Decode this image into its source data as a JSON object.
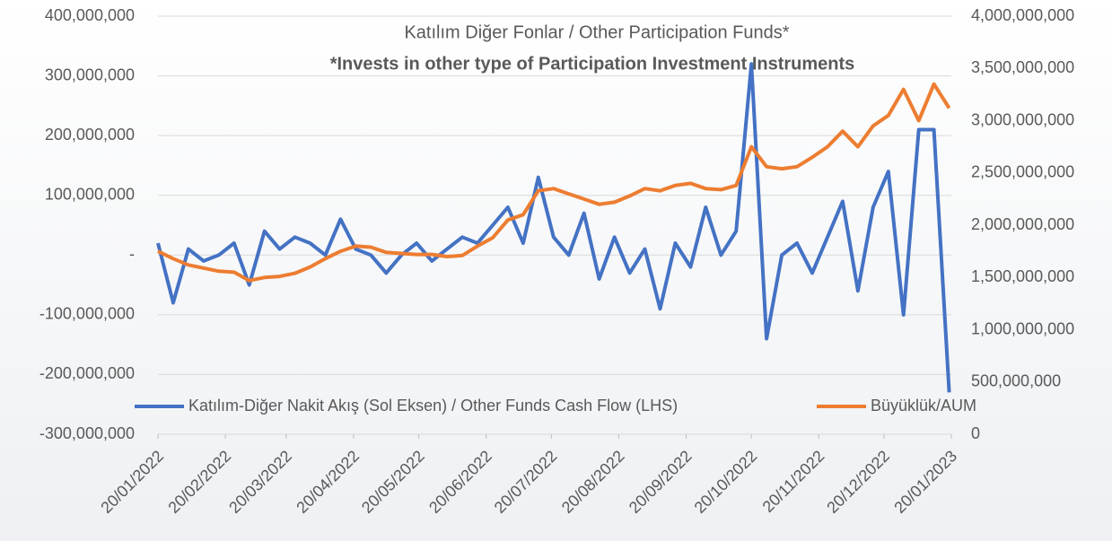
{
  "chart_data": {
    "type": "line",
    "title": "Katılım Diğer Fonlar / Other Participation Funds*",
    "subtitle": "*Invests in other type of Participation Investment Instruments",
    "x": [
      "20/01/2022",
      "27/01/2022",
      "03/02/2022",
      "10/02/2022",
      "17/02/2022",
      "24/02/2022",
      "03/03/2022",
      "10/03/2022",
      "17/03/2022",
      "24/03/2022",
      "31/03/2022",
      "07/04/2022",
      "14/04/2022",
      "21/04/2022",
      "28/04/2022",
      "05/05/2022",
      "12/05/2022",
      "19/05/2022",
      "26/05/2022",
      "02/06/2022",
      "09/06/2022",
      "16/06/2022",
      "23/06/2022",
      "30/06/2022",
      "07/07/2022",
      "14/07/2022",
      "21/07/2022",
      "28/07/2022",
      "04/08/2022",
      "11/08/2022",
      "18/08/2022",
      "25/08/2022",
      "01/09/2022",
      "08/09/2022",
      "15/09/2022",
      "22/09/2022",
      "29/09/2022",
      "06/10/2022",
      "13/10/2022",
      "20/10/2022",
      "27/10/2022",
      "03/11/2022",
      "10/11/2022",
      "17/11/2022",
      "24/11/2022",
      "01/12/2022",
      "08/12/2022",
      "15/12/2022",
      "22/12/2022",
      "29/12/2022",
      "05/01/2023",
      "12/01/2023",
      "19/01/2023"
    ],
    "series": [
      {
        "name": "Katılım-Diğer Nakit Akış (Sol Eksen) / Other Funds Cash Flow (LHS)",
        "color": "#4472c4",
        "values": [
          20000000,
          -80000000,
          10000000,
          -10000000,
          0,
          20000000,
          -50000000,
          40000000,
          10000000,
          30000000,
          20000000,
          0,
          60000000,
          10000000,
          0,
          -30000000,
          0,
          20000000,
          -10000000,
          10000000,
          30000000,
          20000000,
          50000000,
          80000000,
          20000000,
          130000000,
          30000000,
          0,
          70000000,
          -40000000,
          30000000,
          -30000000,
          10000000,
          -90000000,
          20000000,
          -20000000,
          80000000,
          0,
          40000000,
          320000000,
          -140000000,
          0,
          20000000,
          -30000000,
          30000000,
          90000000,
          -60000000,
          80000000,
          140000000,
          -100000000,
          210000000,
          210000000,
          -230000000
        ]
      },
      {
        "name": "Büyüklük/AUM",
        "color": "#ed7d31",
        "axis": "y2",
        "values": [
          1750000000,
          1680000000,
          1620000000,
          1590000000,
          1560000000,
          1550000000,
          1470000000,
          1500000000,
          1510000000,
          1540000000,
          1600000000,
          1680000000,
          1750000000,
          1800000000,
          1790000000,
          1740000000,
          1730000000,
          1720000000,
          1720000000,
          1700000000,
          1710000000,
          1800000000,
          1880000000,
          2050000000,
          2100000000,
          2330000000,
          2350000000,
          2300000000,
          2250000000,
          2200000000,
          2220000000,
          2280000000,
          2350000000,
          2330000000,
          2380000000,
          2400000000,
          2350000000,
          2340000000,
          2380000000,
          2750000000,
          2560000000,
          2540000000,
          2560000000,
          2650000000,
          2750000000,
          2900000000,
          2750000000,
          2950000000,
          3050000000,
          3300000000,
          3000000000,
          3350000000,
          3120000000
        ]
      }
    ],
    "xlim": [
      "20/01/2022",
      "20/01/2023"
    ],
    "xticks": [
      "20/01/2022",
      "20/02/2022",
      "20/03/2022",
      "20/04/2022",
      "20/05/2022",
      "20/06/2022",
      "20/07/2022",
      "20/08/2022",
      "20/09/2022",
      "20/10/2022",
      "20/11/2022",
      "20/12/2022",
      "20/01/2023"
    ],
    "ylim": [
      -300000000,
      400000000
    ],
    "yticks": [
      {
        "value": -300000000,
        "label": "-300,000,000"
      },
      {
        "value": -200000000,
        "label": "-200,000,000"
      },
      {
        "value": -100000000,
        "label": "-100,000,000"
      },
      {
        "value": 0,
        "label": "-"
      },
      {
        "value": 100000000,
        "label": "100,000,000"
      },
      {
        "value": 200000000,
        "label": "200,000,000"
      },
      {
        "value": 300000000,
        "label": "300,000,000"
      },
      {
        "value": 400000000,
        "label": "400,000,000"
      }
    ],
    "y2lim": [
      0,
      4000000000
    ],
    "y2ticks": [
      0,
      {
        "value": 500000000,
        "label": "500,000,000"
      },
      {
        "value": 1000000000,
        "label": "1,000,000,000"
      },
      {
        "value": 1500000000,
        "label": "1,500,000,000"
      },
      {
        "value": 2000000000,
        "label": "2,000,000,000"
      },
      {
        "value": 2500000000,
        "label": "2,500,000,000"
      },
      {
        "value": 3000000000,
        "label": "3,000,000,000"
      },
      {
        "value": 3500000000,
        "label": "3,500,000,000"
      },
      {
        "value": 4000000000,
        "label": "4,000,000,000"
      }
    ]
  }
}
